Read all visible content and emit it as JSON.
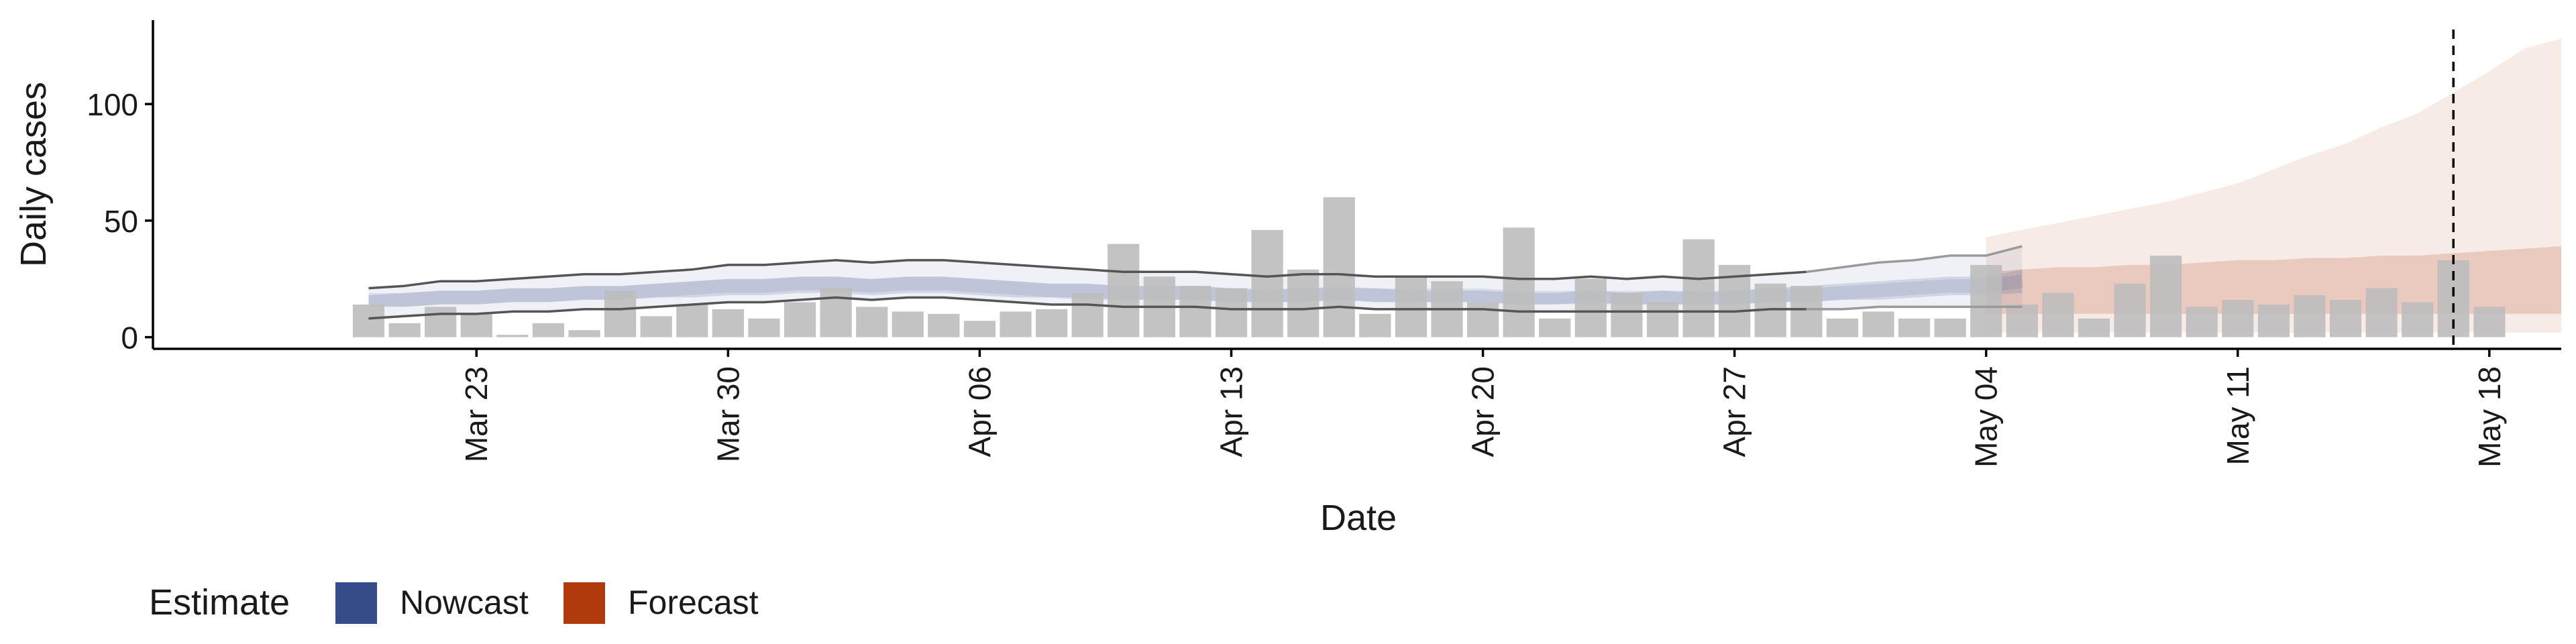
{
  "chart_data": {
    "type": "bar",
    "xlabel": "Date",
    "ylabel": "Daily cases",
    "xlim": [
      "2020-03-14",
      "2020-05-20"
    ],
    "ylim": [
      -5,
      136
    ],
    "x_ticks": [
      {
        "date": "2020-03-23",
        "label": "Mar 23"
      },
      {
        "date": "2020-03-30",
        "label": "Mar 30"
      },
      {
        "date": "2020-04-06",
        "label": "Apr 06"
      },
      {
        "date": "2020-04-13",
        "label": "Apr 13"
      },
      {
        "date": "2020-04-20",
        "label": "Apr 20"
      },
      {
        "date": "2020-04-27",
        "label": "Apr 27"
      },
      {
        "date": "2020-05-04",
        "label": "May 04"
      },
      {
        "date": "2020-05-11",
        "label": "May 11"
      },
      {
        "date": "2020-05-18",
        "label": "May 18"
      }
    ],
    "y_ticks": [
      0,
      50,
      100
    ],
    "vline_date": "2020-05-17",
    "observed_start": "2020-03-20",
    "observed_cases": [
      14,
      6,
      13,
      10,
      1,
      6,
      3,
      20,
      9,
      14,
      12,
      8,
      15,
      21,
      13,
      11,
      10,
      7,
      11,
      12,
      19,
      40,
      26,
      22,
      21,
      46,
      29,
      60,
      10,
      26,
      24,
      15,
      47,
      8,
      25,
      19,
      15,
      42,
      31,
      23,
      22,
      8,
      11,
      8,
      8,
      31,
      14,
      19,
      8,
      23,
      35,
      13,
      16,
      14,
      18,
      16,
      21,
      15,
      33,
      13
    ],
    "nowcast": {
      "start": "2020-03-20",
      "upper90": [
        21,
        22,
        24,
        24,
        25,
        26,
        27,
        27,
        28,
        29,
        31,
        31,
        32,
        33,
        32,
        33,
        33,
        32,
        31,
        30,
        29,
        28,
        28,
        28,
        27,
        26,
        27,
        27,
        26,
        26,
        26,
        26,
        25,
        25,
        26,
        25,
        26,
        25,
        26,
        27,
        28,
        30,
        32,
        33,
        35,
        35,
        39
      ],
      "upper50": [
        18,
        19,
        20,
        20,
        21,
        21,
        22,
        22,
        23,
        24,
        25,
        25,
        26,
        26,
        25,
        26,
        26,
        25,
        24,
        23,
        23,
        22,
        22,
        22,
        21,
        20,
        21,
        21,
        21,
        20,
        20,
        20,
        19,
        19,
        20,
        19,
        20,
        19,
        20,
        21,
        22,
        23,
        24,
        25,
        26,
        26,
        29
      ],
      "median": [
        16,
        16,
        17,
        17,
        18,
        18,
        19,
        19,
        20,
        21,
        22,
        22,
        23,
        23,
        22,
        23,
        23,
        22,
        21,
        20,
        20,
        19,
        19,
        19,
        18,
        18,
        18,
        19,
        18,
        18,
        18,
        18,
        17,
        17,
        17,
        17,
        17,
        17,
        17,
        18,
        18,
        19,
        20,
        21,
        22,
        22,
        24
      ],
      "lower50": [
        13,
        13,
        14,
        14,
        15,
        15,
        16,
        16,
        17,
        17,
        18,
        18,
        19,
        19,
        18,
        19,
        19,
        18,
        17,
        17,
        16,
        16,
        16,
        16,
        15,
        15,
        15,
        16,
        15,
        15,
        15,
        15,
        14,
        14,
        15,
        14,
        14,
        14,
        14,
        15,
        15,
        16,
        16,
        17,
        18,
        18,
        19
      ],
      "lower90": [
        8,
        9,
        10,
        10,
        11,
        11,
        12,
        12,
        13,
        14,
        15,
        15,
        16,
        17,
        16,
        17,
        17,
        16,
        15,
        14,
        14,
        13,
        13,
        13,
        12,
        12,
        12,
        13,
        12,
        12,
        12,
        12,
        11,
        11,
        11,
        11,
        11,
        11,
        11,
        12,
        12,
        12,
        13,
        13,
        13,
        13,
        13
      ]
    },
    "forecast": {
      "start": "2020-05-04",
      "upper90": [
        43,
        46,
        49,
        52,
        55,
        58,
        62,
        66,
        72,
        78,
        83,
        90,
        96,
        105,
        114,
        124,
        128
      ],
      "upper50": [
        28,
        29,
        30,
        30,
        31,
        31,
        32,
        33,
        33,
        34,
        34,
        35,
        35,
        36,
        37,
        38,
        39
      ],
      "lower50": [
        10,
        10,
        10,
        10,
        10,
        10,
        10,
        10,
        10,
        10,
        10,
        10,
        10,
        10,
        10,
        10,
        10
      ],
      "lower90": [
        2,
        2,
        2,
        2,
        2,
        2,
        2,
        2,
        2,
        2,
        2,
        2,
        2,
        2,
        2,
        2,
        2
      ]
    },
    "series": [
      {
        "name": "Nowcast",
        "color": "#364b8a"
      },
      {
        "name": "Forecast",
        "color": "#b13a0c"
      }
    ],
    "bar_color": "#bdbdbd",
    "legend": {
      "title": "Estimate",
      "placement": "bottom-left"
    },
    "grid": false
  }
}
